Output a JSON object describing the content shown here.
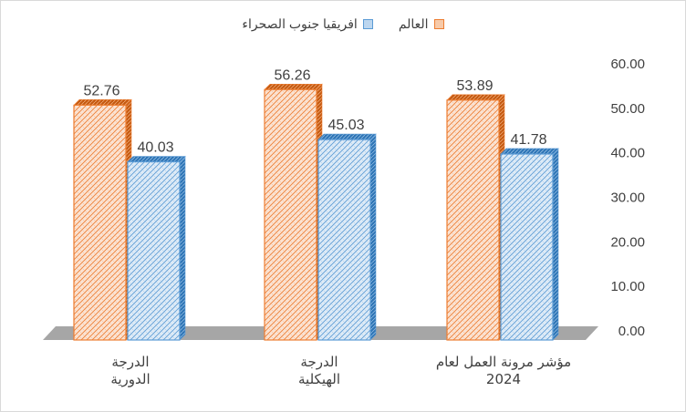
{
  "chart_data": {
    "type": "bar",
    "categories": [
      "مؤشر مرونة العمل لعام 2024",
      "الدرجة الهيكلية",
      "الدرجة الدورية"
    ],
    "category_lines": [
      [
        "مؤشر مرونة العمل لعام",
        "2024"
      ],
      [
        "الدرجة",
        "الهيكلية"
      ],
      [
        "الدرجة",
        "الدورية"
      ]
    ],
    "series": [
      {
        "name": "العالم",
        "values": [
          53.89,
          56.26,
          52.76
        ],
        "labels": [
          "53.89",
          "56.26",
          "52.76"
        ],
        "color": "#ed7d31"
      },
      {
        "name": "افريقيا جنوب الصحراء",
        "values": [
          41.78,
          45.03,
          40.03
        ],
        "labels": [
          "41.78",
          "45.03",
          "40.03"
        ],
        "color": "#5b9bd5"
      }
    ],
    "yticks": [
      "0.00",
      "10.00",
      "20.00",
      "30.00",
      "40.00",
      "50.00",
      "60.00"
    ],
    "ylim": [
      0,
      60
    ],
    "yaxis_position": "right",
    "legend_position": "top",
    "title": "",
    "xlabel": "",
    "ylabel": ""
  }
}
